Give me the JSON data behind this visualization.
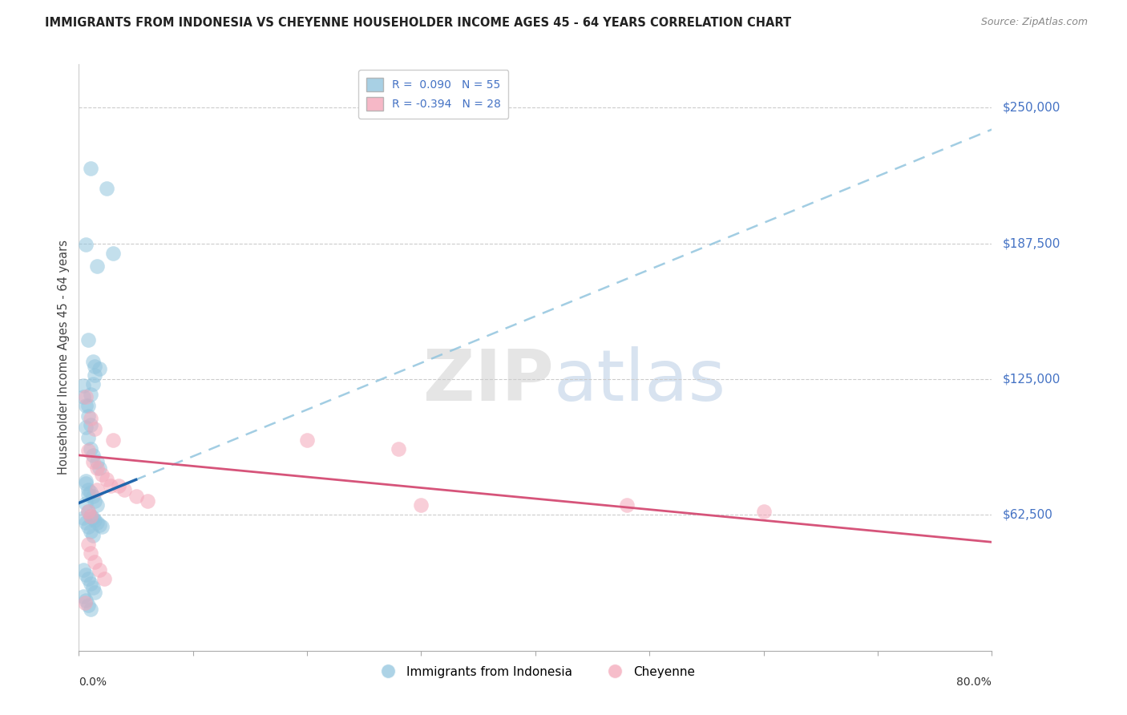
{
  "title": "IMMIGRANTS FROM INDONESIA VS CHEYENNE HOUSEHOLDER INCOME AGES 45 - 64 YEARS CORRELATION CHART",
  "source": "Source: ZipAtlas.com",
  "ylabel": "Householder Income Ages 45 - 64 years",
  "yticks": [
    0,
    62500,
    125000,
    187500,
    250000
  ],
  "ytick_labels": [
    "",
    "$62,500",
    "$125,000",
    "$187,500",
    "$250,000"
  ],
  "xmin": 0.0,
  "xmax": 80.0,
  "ymin": 0,
  "ymax": 270000,
  "legend1_r": "0.090",
  "legend1_n": "55",
  "legend2_r": "-0.394",
  "legend2_n": "28",
  "blue_color": "#92c5de",
  "pink_color": "#f4a7b9",
  "blue_line_color": "#2166ac",
  "pink_line_color": "#d6547a",
  "dashed_line_color": "#92c5de",
  "watermark_zip": "ZIP",
  "watermark_atlas": "atlas",
  "blue_points_x": [
    1.0,
    2.4,
    0.6,
    1.6,
    0.8,
    1.2,
    1.4,
    1.8,
    3.0,
    0.4,
    0.8,
    1.0,
    1.2,
    0.6,
    1.4,
    0.8,
    1.0,
    1.2,
    1.6,
    1.8,
    0.4,
    0.6,
    0.8,
    1.0,
    0.6,
    0.8,
    1.0,
    1.2,
    1.4,
    1.6,
    0.4,
    0.6,
    0.8,
    1.0,
    1.2,
    0.6,
    0.8,
    0.6,
    0.8,
    1.0,
    1.2,
    1.4,
    1.6,
    1.8,
    2.0,
    0.4,
    0.6,
    0.8,
    1.0,
    1.2,
    1.4,
    0.4,
    0.6,
    0.8,
    1.0
  ],
  "blue_points_y": [
    222000,
    213000,
    187000,
    177000,
    143000,
    133000,
    131000,
    130000,
    183000,
    122000,
    113000,
    118000,
    123000,
    103000,
    127000,
    98000,
    93000,
    90000,
    87000,
    84000,
    117000,
    113000,
    108000,
    104000,
    77000,
    74000,
    73000,
    71000,
    69000,
    67000,
    61000,
    59000,
    57000,
    55000,
    53000,
    78000,
    72000,
    68000,
    64000,
    62000,
    61000,
    60000,
    59000,
    58000,
    57000,
    37000,
    35000,
    33000,
    31000,
    29000,
    27000,
    25000,
    23000,
    21000,
    19000
  ],
  "pink_points_x": [
    0.6,
    1.0,
    1.4,
    3.0,
    0.8,
    1.2,
    1.6,
    2.0,
    2.4,
    2.8,
    4.0,
    5.0,
    6.0,
    20.0,
    28.0,
    0.8,
    1.0,
    1.6,
    3.5,
    30.0,
    48.0,
    60.0,
    0.8,
    1.0,
    1.4,
    1.8,
    2.2,
    0.5
  ],
  "pink_points_y": [
    117000,
    107000,
    102000,
    97000,
    92000,
    87000,
    84000,
    81000,
    79000,
    76000,
    74000,
    71000,
    69000,
    97000,
    93000,
    64000,
    62000,
    74000,
    76000,
    67000,
    67000,
    64000,
    49000,
    45000,
    41000,
    37000,
    33000,
    22000
  ],
  "blue_reg_x0": 0,
  "blue_reg_x1": 80,
  "blue_reg_y0": 68000,
  "blue_reg_y1": 240000,
  "blue_solid_x0": 0,
  "blue_solid_x1": 5,
  "pink_reg_x0": 0,
  "pink_reg_x1": 80,
  "pink_reg_y0": 90000,
  "pink_reg_y1": 50000
}
